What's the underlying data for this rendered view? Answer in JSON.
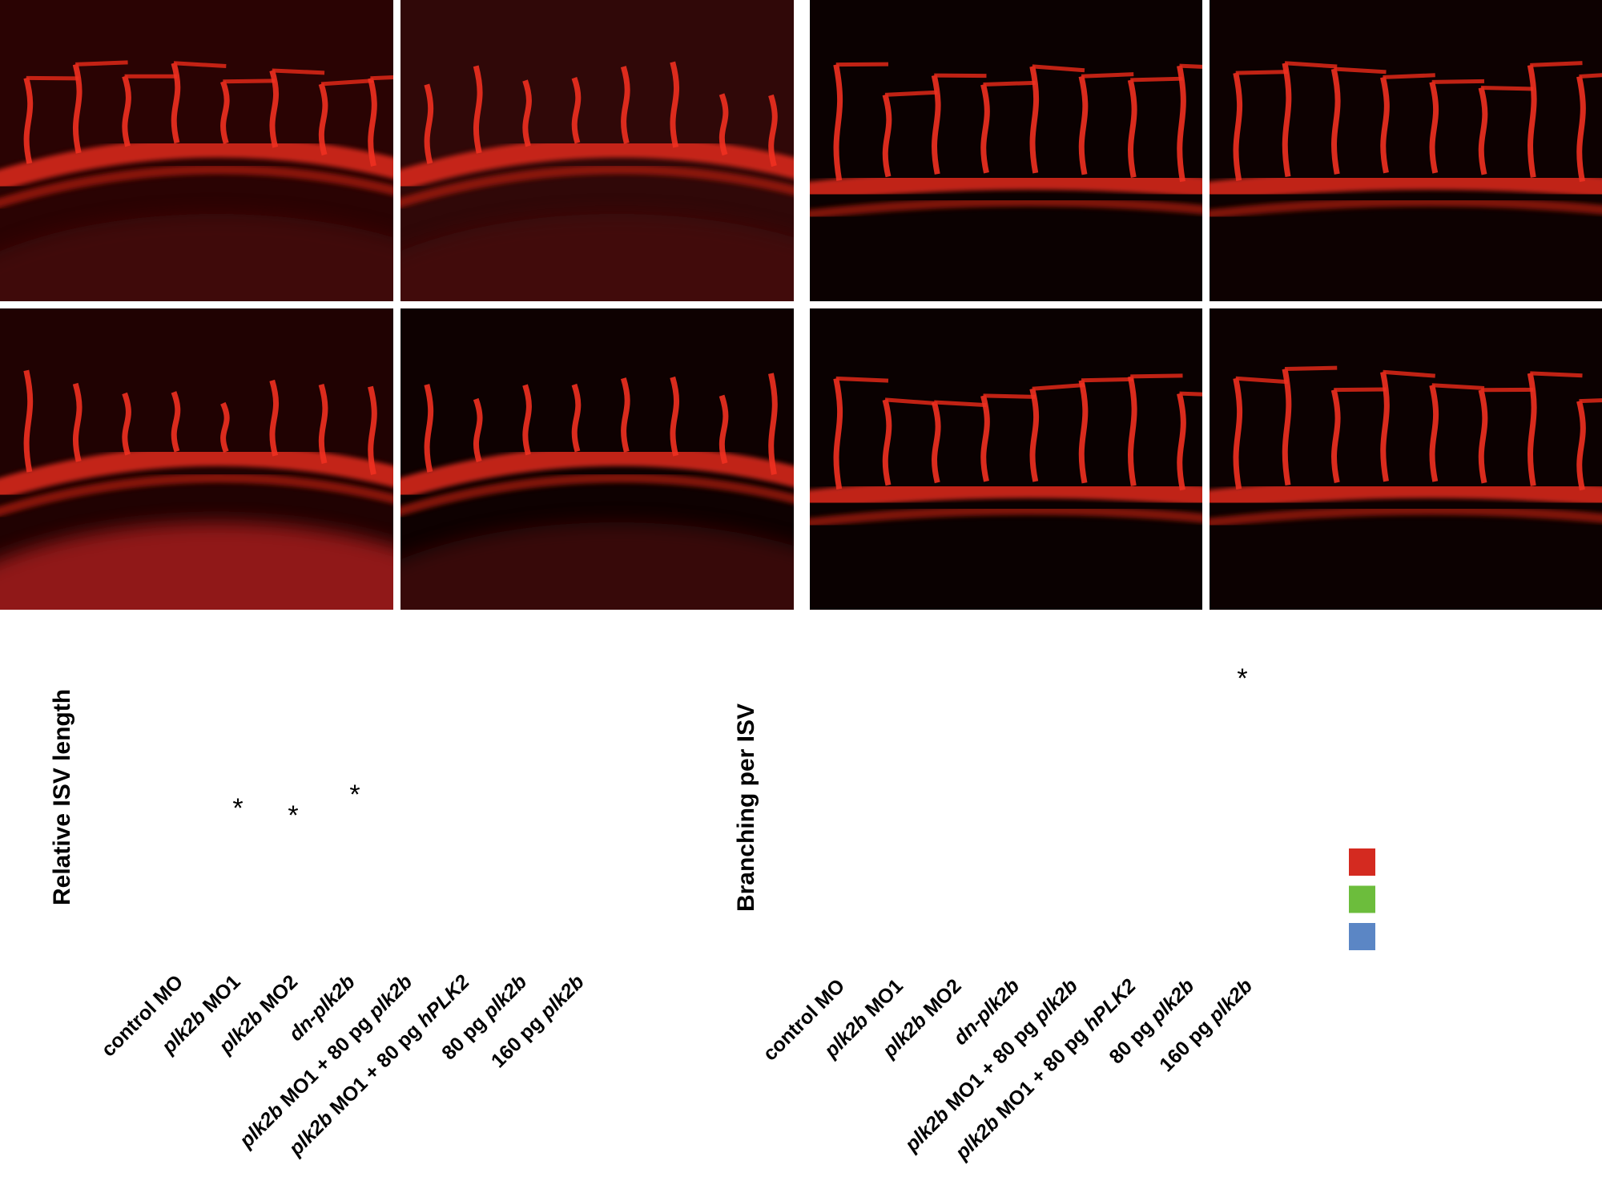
{
  "charts": [
    {
      "y_label": "Relative ISV length",
      "categories": [
        [
          {
            "text": "control MO"
          }
        ],
        [
          {
            "text": "plk2b",
            "italic": true
          },
          {
            "text": " MO1"
          }
        ],
        [
          {
            "text": "plk2b",
            "italic": true
          },
          {
            "text": " MO2"
          }
        ],
        [
          {
            "text": "dn-plk2b",
            "italic": true
          }
        ],
        [
          {
            "text": "plk2b",
            "italic": true
          },
          {
            "text": " MO1 + 80 pg "
          },
          {
            "text": "plk2b",
            "italic": true
          }
        ],
        [
          {
            "text": "plk2b",
            "italic": true
          },
          {
            "text": " MO1 + 80 pg "
          },
          {
            "text": "hPLK2",
            "italic": true
          }
        ],
        [
          {
            "text": "80 pg "
          },
          {
            "text": "plk2b",
            "italic": true
          }
        ],
        [
          {
            "text": "160 pg "
          },
          {
            "text": "plk2b",
            "italic": true
          }
        ]
      ],
      "significance": [
        null,
        "*",
        "*",
        "*",
        null,
        null,
        null,
        null
      ]
    },
    {
      "y_label": "Branching per ISV",
      "categories": [
        [
          {
            "text": "control MO"
          }
        ],
        [
          {
            "text": "plk2b",
            "italic": true
          },
          {
            "text": " MO1"
          }
        ],
        [
          {
            "text": "plk2b",
            "italic": true
          },
          {
            "text": " MO2"
          }
        ],
        [
          {
            "text": "dn-plk2b",
            "italic": true
          }
        ],
        [
          {
            "text": "plk2b",
            "italic": true
          },
          {
            "text": " MO1 + 80 pg "
          },
          {
            "text": "plk2b",
            "italic": true
          }
        ],
        [
          {
            "text": "plk2b",
            "italic": true
          },
          {
            "text": " MO1 + 80 pg "
          },
          {
            "text": "hPLK2",
            "italic": true
          }
        ],
        [
          {
            "text": "80 pg "
          },
          {
            "text": "plk2b",
            "italic": true
          }
        ],
        [
          {
            "text": "160 pg "
          },
          {
            "text": "plk2b",
            "italic": true
          }
        ]
      ],
      "significance": [
        null,
        null,
        null,
        null,
        null,
        null,
        null,
        "*"
      ]
    }
  ],
  "legend": {
    "colors": [
      "#d42a20",
      "#6cbd3c",
      "#5b86c5"
    ]
  }
}
